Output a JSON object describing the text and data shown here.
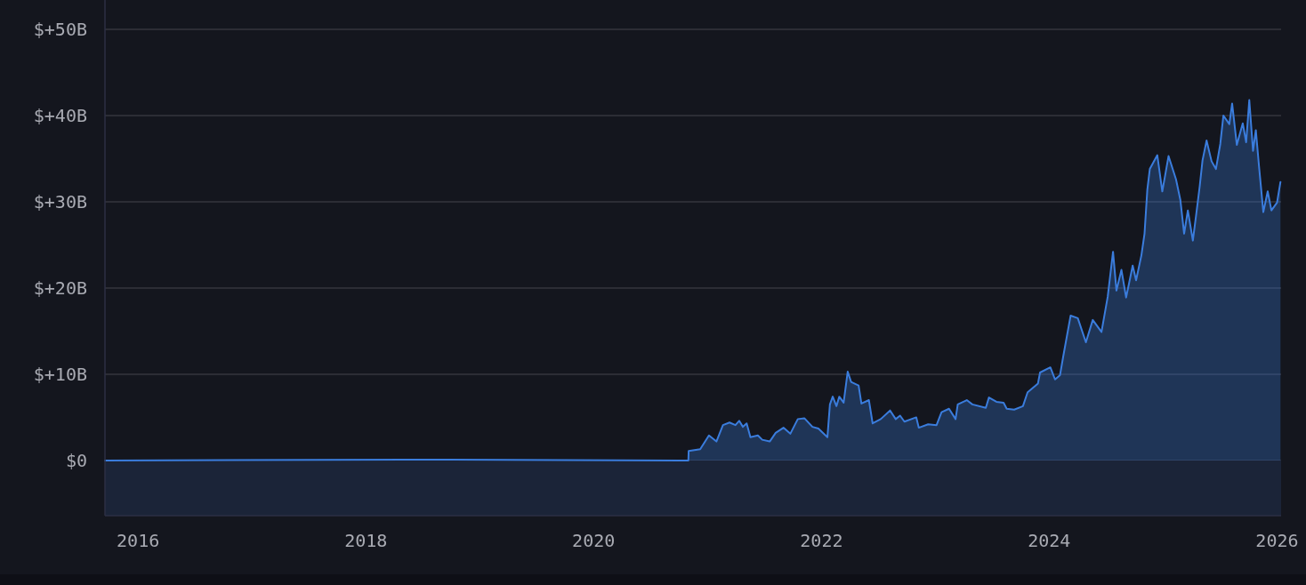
{
  "chart_data": {
    "type": "area",
    "xlim": [
      "2015-09-17",
      "2026-01-14"
    ],
    "xticks": [
      "2016",
      "2018",
      "2020",
      "2022",
      "2024",
      "2026"
    ],
    "ylim": [
      -6.4,
      53.4
    ],
    "yticks": [
      {
        "value": 0,
        "label": "$0"
      },
      {
        "value": 10,
        "label": "$+10B"
      },
      {
        "value": 20,
        "label": "$+20B"
      },
      {
        "value": 30,
        "label": "$+30B"
      },
      {
        "value": 40,
        "label": "$+40B"
      },
      {
        "value": 50,
        "label": "$+50B"
      }
    ],
    "grid": "y",
    "bands": [
      {
        "axis": "y",
        "from": -6.4,
        "to": 0,
        "color": "#1b2438"
      }
    ],
    "x": [
      "2015-09-17",
      "2018-05-05",
      "2020-10-31",
      "2020-11-01",
      "2020-12-08",
      "2021-01-05",
      "2021-01-29",
      "2021-02-19",
      "2021-03-12",
      "2021-03-31",
      "2021-04-12",
      "2021-04-24",
      "2021-05-06",
      "2021-05-18",
      "2021-06-11",
      "2021-06-25",
      "2021-07-19",
      "2021-08-07",
      "2021-09-01",
      "2021-09-23",
      "2021-10-17",
      "2021-11-07",
      "2021-12-03",
      "2021-12-22",
      "2022-01-20",
      "2022-01-28",
      "2022-02-06",
      "2022-02-18",
      "2022-02-27",
      "2022-03-13",
      "2022-03-26",
      "2022-04-06",
      "2022-04-30",
      "2022-05-09",
      "2022-06-02",
      "2022-06-14",
      "2022-07-10",
      "2022-08-09",
      "2022-08-27",
      "2022-09-10",
      "2022-09-24",
      "2022-11-01",
      "2022-11-09",
      "2022-12-09",
      "2023-01-05",
      "2023-01-21",
      "2023-02-14",
      "2023-03-07",
      "2023-03-14",
      "2023-04-12",
      "2023-04-30",
      "2023-06-12",
      "2023-06-22",
      "2023-07-16",
      "2023-08-08",
      "2023-08-18",
      "2023-09-11",
      "2023-10-09",
      "2023-10-24",
      "2023-11-26",
      "2023-12-03",
      "2024-01-05",
      "2024-01-20",
      "2024-02-05",
      "2024-02-15",
      "2024-03-10",
      "2024-04-02",
      "2024-04-28",
      "2024-05-20",
      "2024-06-17",
      "2024-07-07",
      "2024-07-24",
      "2024-08-04",
      "2024-08-20",
      "2024-09-04",
      "2024-09-25",
      "2024-10-06",
      "2024-10-23",
      "2024-11-02",
      "2024-11-11",
      "2024-11-19",
      "2024-12-13",
      "2024-12-29",
      "2025-01-18",
      "2025-02-11",
      "2025-02-25",
      "2025-03-09",
      "2025-03-21",
      "2025-04-06",
      "2025-04-16",
      "2025-04-28",
      "2025-05-07",
      "2025-05-20",
      "2025-06-05",
      "2025-06-19",
      "2025-07-03",
      "2025-07-13",
      "2025-08-01",
      "2025-08-10",
      "2025-08-25",
      "2025-09-13",
      "2025-09-24",
      "2025-10-04",
      "2025-10-16",
      "2025-10-25",
      "2025-11-04",
      "2025-11-18",
      "2025-12-02",
      "2025-12-14",
      "2026-01-01",
      "2026-01-12"
    ],
    "series": [
      {
        "color": "#3b7ddd",
        "values": [
          0,
          0.1,
          0,
          1.1,
          1.3,
          2.9,
          2.2,
          4.1,
          4.4,
          4.1,
          4.6,
          3.9,
          4.3,
          2.7,
          2.9,
          2.4,
          2.2,
          3.2,
          3.8,
          3.1,
          4.8,
          4.9,
          3.9,
          3.7,
          2.7,
          6.5,
          7.4,
          6.3,
          7.4,
          6.7,
          10.3,
          9.1,
          8.7,
          6.6,
          7.0,
          4.3,
          4.8,
          5.8,
          4.8,
          5.2,
          4.5,
          5.0,
          3.8,
          4.2,
          4.1,
          5.6,
          6.0,
          4.8,
          6.5,
          7.0,
          6.5,
          6.1,
          7.3,
          6.8,
          6.7,
          6.0,
          5.9,
          6.3,
          7.9,
          8.9,
          10.2,
          10.8,
          9.4,
          9.9,
          12.0,
          16.8,
          16.5,
          13.7,
          16.3,
          14.9,
          19.0,
          24.2,
          19.7,
          22.1,
          18.9,
          22.6,
          20.9,
          23.8,
          26.3,
          31.4,
          33.8,
          35.4,
          31.2,
          35.3,
          32.6,
          30.2,
          26.3,
          29.0,
          25.5,
          28.3,
          31.8,
          34.8,
          37.1,
          34.7,
          33.8,
          36.7,
          40.0,
          39.0,
          41.4,
          36.6,
          39.1,
          36.9,
          41.8,
          35.9,
          38.3,
          34.2,
          28.8,
          31.2,
          29.0,
          29.9,
          32.3
        ]
      }
    ]
  }
}
